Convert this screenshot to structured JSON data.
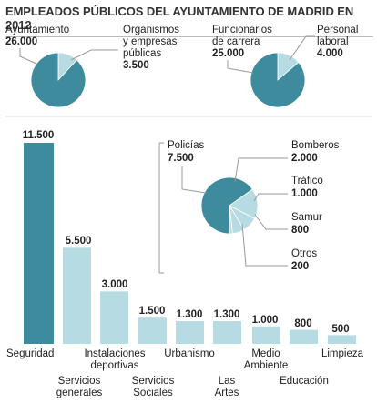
{
  "title": "EMPLEADOS PÚBLICOS DEL AYUNTAMIENTO DE MADRID EN 2012",
  "colors": {
    "dark": "#3f8b9e",
    "light": "#b7dbe2",
    "line": "#999999"
  },
  "chart_data": [
    {
      "type": "pie",
      "slices": [
        {
          "label": "Ayuntamiento",
          "value": 26000,
          "value_label": "26.000"
        },
        {
          "label": "Organismos y empresas públicas",
          "value": 3500,
          "value_label": "3.500"
        }
      ]
    },
    {
      "type": "pie",
      "slices": [
        {
          "label": "Funcionarios de carrera",
          "value": 25000,
          "value_label": "25.000"
        },
        {
          "label": "Personal laboral",
          "value": 4000,
          "value_label": "4.000"
        }
      ]
    },
    {
      "type": "bar",
      "categories": [
        "Seguridad",
        "Servicios generales",
        "Instalaciones deportivas",
        "Servicios Sociales",
        "Urbanismo",
        "Las Artes",
        "Medio Ambiente",
        "Educación",
        "Limpieza"
      ],
      "values": [
        11500,
        5500,
        3000,
        1500,
        1300,
        1300,
        1000,
        800,
        500
      ],
      "value_labels": [
        "11.500",
        "5.500",
        "3.000",
        "1.500",
        "1.300",
        "1.300",
        "1.000",
        "800",
        "500"
      ],
      "highlight_index": 0
    },
    {
      "type": "pie",
      "slices": [
        {
          "label": "Policías",
          "value": 7500,
          "value_label": "7.500"
        },
        {
          "label": "Bomberos",
          "value": 2000,
          "value_label": "2.000"
        },
        {
          "label": "Tráfico",
          "value": 1000,
          "value_label": "1.000"
        },
        {
          "label": "Samur",
          "value": 800,
          "value_label": "800"
        },
        {
          "label": "Otros",
          "value": 200,
          "value_label": "200"
        }
      ]
    }
  ],
  "labels": {
    "p1a_l1": "Ayuntamiento",
    "p1b_l1": "Organismos",
    "p1b_l2": "y empresas",
    "p1b_l3": "públicas",
    "p2a_l1": "Funcionarios",
    "p2a_l2": "de carrera",
    "p2b_l1": "Personal",
    "p2b_l2": "laboral",
    "cat0": "Seguridad",
    "cat1_l1": "Servicios",
    "cat1_l2": "generales",
    "cat2_l1": "Instalaciones",
    "cat2_l2": "deportivas",
    "cat3_l1": "Servicios",
    "cat3_l2": "Sociales",
    "cat4": "Urbanismo",
    "cat5_l1": "Las",
    "cat5_l2": "Artes",
    "cat6_l1": "Medio",
    "cat6_l2": "Ambiente",
    "cat7": "Educación",
    "cat8": "Limpieza"
  }
}
